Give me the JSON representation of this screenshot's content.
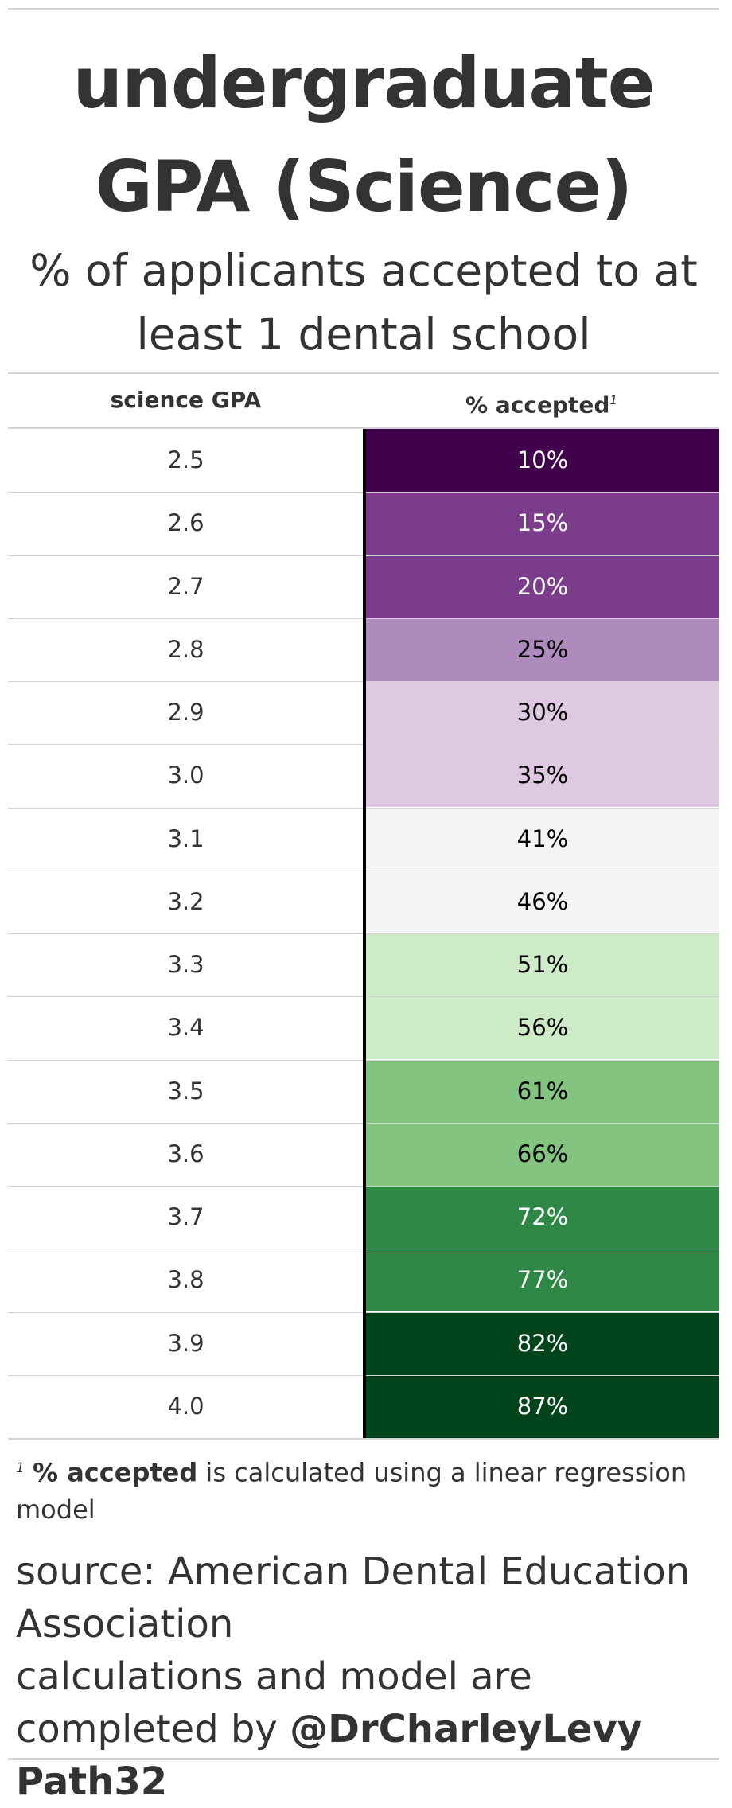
{
  "title": "undergraduate GPA (Science)",
  "subtitle": "% of applicants accepted to at least 1 dental school",
  "columns": {
    "gpa": "science GPA",
    "pct": "% accepted",
    "pct_footnote_mark": "1"
  },
  "chart_data": {
    "type": "table",
    "title": "undergraduate GPA (Science)",
    "subtitle": "% of applicants accepted to at least 1 dental school",
    "columns": [
      "science GPA",
      "% accepted"
    ],
    "rows": [
      {
        "gpa": "2.5",
        "pct": "10%",
        "value": 10,
        "fill": "#40004b",
        "text_color": "#ffffff"
      },
      {
        "gpa": "2.6",
        "pct": "15%",
        "value": 15,
        "fill": "#7b3d8b",
        "text_color": "#ffffff"
      },
      {
        "gpa": "2.7",
        "pct": "20%",
        "value": 20,
        "fill": "#7b3d8b",
        "text_color": "#ffffff"
      },
      {
        "gpa": "2.8",
        "pct": "25%",
        "value": 25,
        "fill": "#ad8bbd",
        "text_color": "#000000"
      },
      {
        "gpa": "2.9",
        "pct": "30%",
        "value": 30,
        "fill": "#dfc8e2",
        "text_color": "#000000"
      },
      {
        "gpa": "3.0",
        "pct": "35%",
        "value": 35,
        "fill": "#dfc8e2",
        "text_color": "#000000"
      },
      {
        "gpa": "3.1",
        "pct": "41%",
        "value": 41,
        "fill": "#f5f5f5",
        "text_color": "#000000"
      },
      {
        "gpa": "3.2",
        "pct": "46%",
        "value": 46,
        "fill": "#f5f5f5",
        "text_color": "#000000"
      },
      {
        "gpa": "3.3",
        "pct": "51%",
        "value": 51,
        "fill": "#cdebc7",
        "text_color": "#000000"
      },
      {
        "gpa": "3.4",
        "pct": "56%",
        "value": 56,
        "fill": "#cdebc7",
        "text_color": "#000000"
      },
      {
        "gpa": "3.5",
        "pct": "61%",
        "value": 61,
        "fill": "#82c480",
        "text_color": "#000000"
      },
      {
        "gpa": "3.6",
        "pct": "66%",
        "value": 66,
        "fill": "#82c480",
        "text_color": "#000000"
      },
      {
        "gpa": "3.7",
        "pct": "72%",
        "value": 72,
        "fill": "#2e8745",
        "text_color": "#ffffff"
      },
      {
        "gpa": "3.8",
        "pct": "77%",
        "value": 77,
        "fill": "#2e8745",
        "text_color": "#ffffff"
      },
      {
        "gpa": "3.9",
        "pct": "82%",
        "value": 82,
        "fill": "#00441b",
        "text_color": "#ffffff"
      },
      {
        "gpa": "4.0",
        "pct": "87%",
        "value": 87,
        "fill": "#00441b",
        "text_color": "#ffffff"
      }
    ]
  },
  "footnote": {
    "mark": "1",
    "bold": "% accepted",
    "text": " is calculated using a linear regression model"
  },
  "source": {
    "line1": "source: American Dental Education Association",
    "line2": "calculations and model are completed by ",
    "credit": "@DrCharleyLevy Path32"
  }
}
